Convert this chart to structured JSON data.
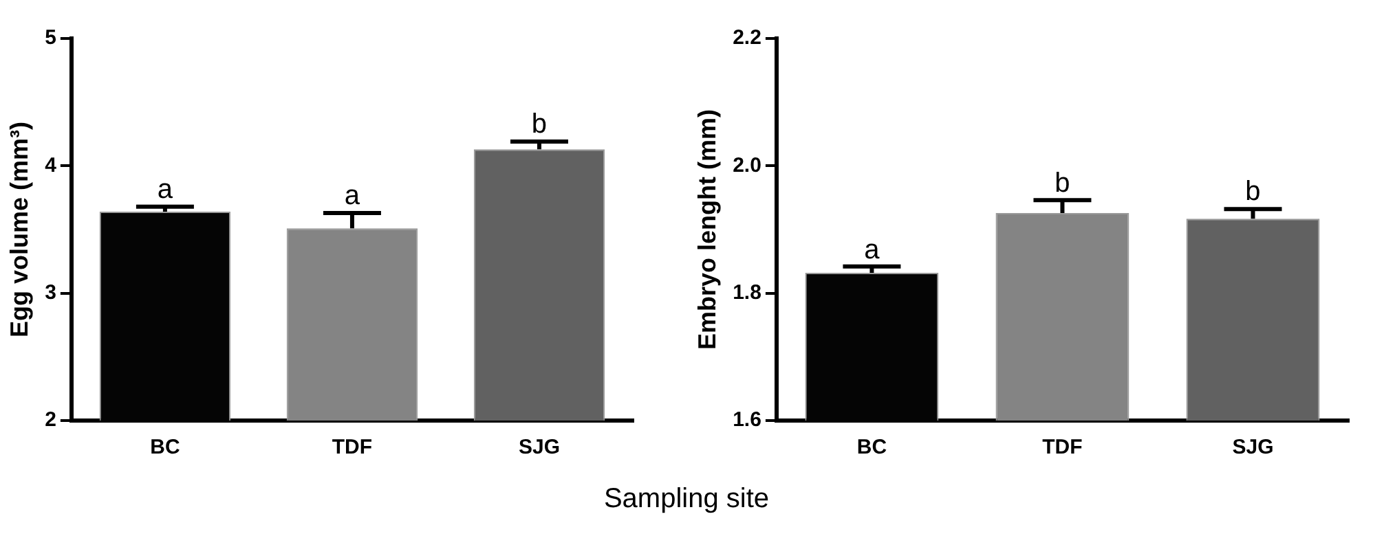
{
  "chart_data": [
    {
      "type": "bar",
      "categories": [
        "BC",
        "TDF",
        "SJG"
      ],
      "ylabel": "Egg volume (mm³)",
      "xlabel": "Sampling site",
      "series": [
        {
          "colors": [
            "#050505",
            "#848484",
            "#616161"
          ],
          "values": [
            3.64,
            3.51,
            4.13
          ],
          "errors": [
            0.04,
            0.12,
            0.06
          ]
        }
      ],
      "ylim": [
        2,
        5
      ],
      "yticks": [
        2,
        3,
        4,
        5
      ],
      "grid": false,
      "legend": false,
      "annotations": [
        {
          "text": "a",
          "x": "BC",
          "y": 3.7
        },
        {
          "text": "a",
          "x": "TDF",
          "y": 3.65
        },
        {
          "text": "b",
          "x": "SJG",
          "y": 4.21
        }
      ]
    },
    {
      "type": "bar",
      "categories": [
        "BC",
        "TDF",
        "SJG"
      ],
      "ylabel": "Embryo lenght (mm)",
      "series": [
        {
          "colors": [
            "#050505",
            "#848484",
            "#616161"
          ],
          "values": [
            1.832,
            1.926,
            1.917
          ],
          "errors": [
            0.01,
            0.02,
            0.015
          ]
        }
      ],
      "ylim": [
        1.6,
        2.2
      ],
      "yticks": [
        {
          "value": 1.6,
          "label": "1.6"
        },
        {
          "value": 1.8,
          "label": "1.8"
        },
        {
          "value": 2.0,
          "label": "2.0"
        },
        {
          "value": 2.2,
          "label": "2.2"
        }
      ],
      "grid": false,
      "legend": false,
      "annotations": [
        {
          "text": "a",
          "x": "BC",
          "y": 1.845
        },
        {
          "text": "b",
          "x": "TDF",
          "y": 1.95
        },
        {
          "text": "b",
          "x": "SJG",
          "y": 1.937
        }
      ]
    }
  ]
}
